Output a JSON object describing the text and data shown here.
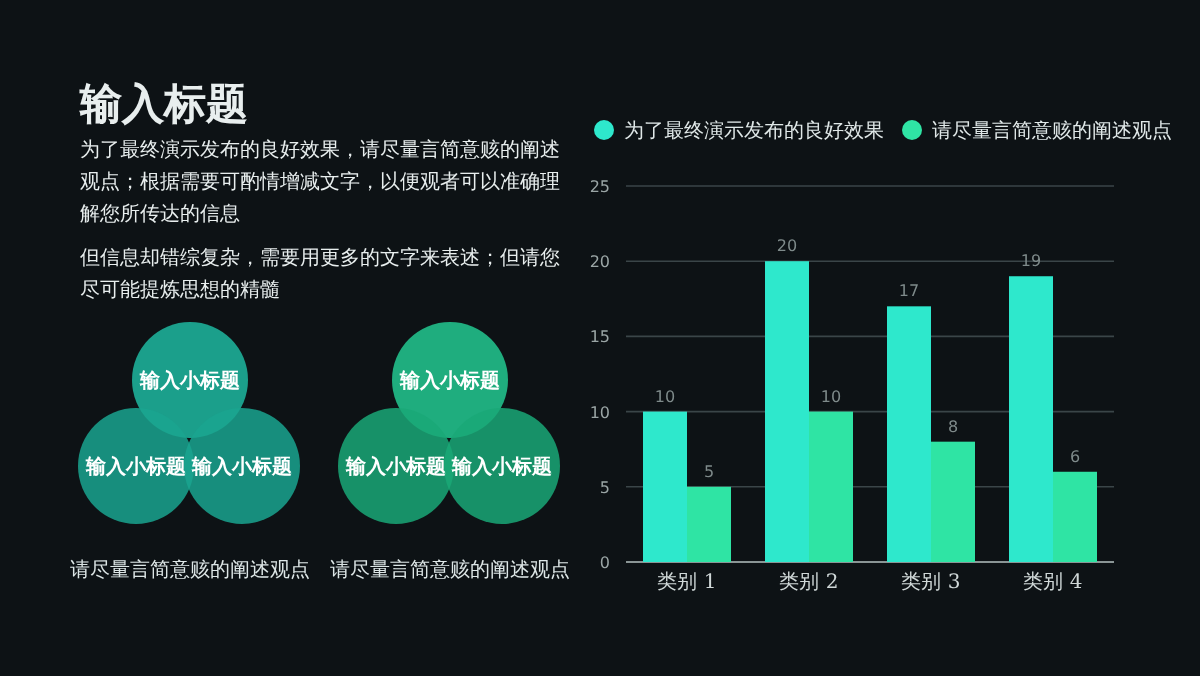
{
  "chart_data": [
    {
      "type": "other",
      "title": "输入标题",
      "annotations": [
        "为了最终演示发布的良好效果，请尽量言简意赅的阐述观点；根据需要可酌情增减文字，以便观者可以准确理解您所传达的信息",
        "但信息却错综复杂，需要用更多的文字来表述；但请您尽可能提炼思想的精髓",
        "输入小标题",
        "输入小标题",
        "输入小标题",
        "请尽量言简意赅的阐述观点",
        "输入小标题",
        "输入小标题",
        "输入小标题",
        "请尽量言简意赅的阐述观点"
      ]
    },
    {
      "type": "bar",
      "categories": [
        "类别 1",
        "类别 2",
        "类别 3",
        "类别 4"
      ],
      "series": [
        {
          "name": "为了最终演示发布的良好效果",
          "color": "#2ee8cc",
          "values": [
            10,
            20,
            17,
            19
          ]
        },
        {
          "name": "请尽量言简意赅的阐述观点",
          "color": "#2fe4a4",
          "values": [
            5,
            10,
            8,
            6
          ]
        }
      ],
      "ylim": [
        0,
        25
      ],
      "yticks": [
        0,
        5,
        10,
        15,
        20,
        25
      ],
      "grid": "y",
      "legend": "top",
      "data_labels": true
    }
  ]
}
